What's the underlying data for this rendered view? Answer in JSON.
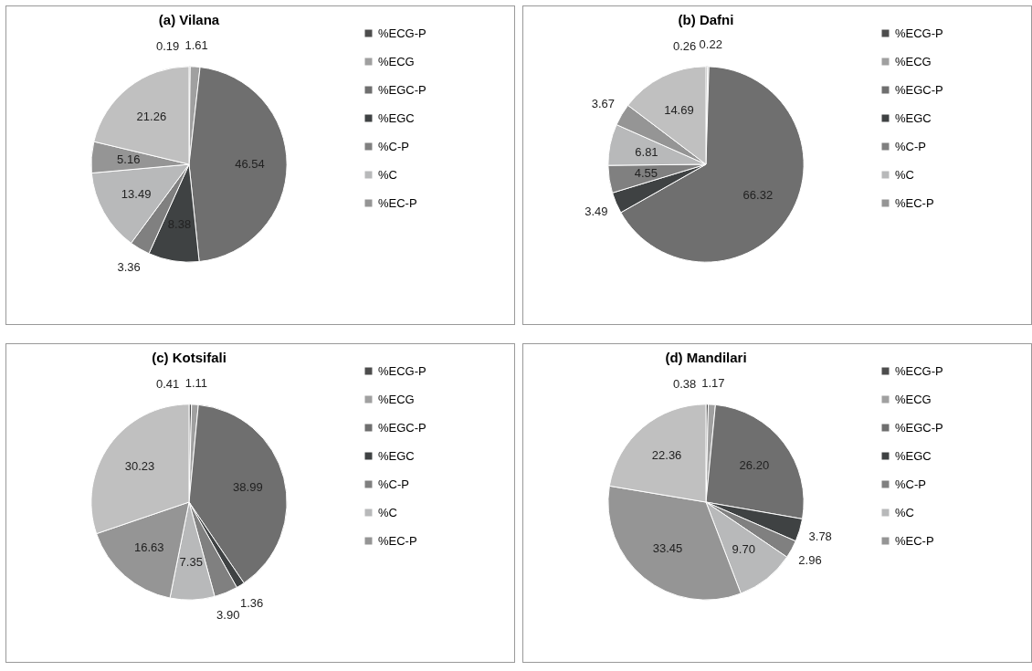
{
  "chart_data": [
    {
      "type": "pie",
      "title": "(a) Vilana",
      "categories": [
        "%ECG-P",
        "%ECG",
        "%EGC-P",
        "%EGC",
        "%C-P",
        "%C",
        "%EC-P",
        null
      ],
      "values": [
        0.19,
        1.61,
        46.54,
        8.38,
        3.36,
        13.49,
        5.16,
        21.26
      ],
      "value_labels": [
        "0.19",
        "1.61",
        "46.54",
        "8.38",
        "3.36",
        "13.49",
        "5.16",
        "21.26"
      ],
      "colors": [
        "#4d4d4d",
        "#a0a0a0",
        "#6f6f6f",
        "#3f4243",
        "#808080",
        "#b8b9ba",
        "#959595",
        "#c0c0c0"
      ],
      "legend": "right"
    },
    {
      "type": "pie",
      "title": "(b) Dafni",
      "categories": [
        "%ECG-P",
        "%ECG",
        "%EGC-P",
        "%EGC",
        "%C-P",
        "%C",
        "%EC-P",
        null
      ],
      "values": [
        0.26,
        0.22,
        66.32,
        3.49,
        4.55,
        6.81,
        3.67,
        14.69
      ],
      "value_labels": [
        "0.26",
        "0.22",
        "66.32",
        "3.49",
        "4.55",
        "6.81",
        "3.67",
        "14.69"
      ],
      "colors": [
        "#4d4d4d",
        "#a0a0a0",
        "#6f6f6f",
        "#3f4243",
        "#808080",
        "#b8b9ba",
        "#959595",
        "#c0c0c0"
      ],
      "legend": "right"
    },
    {
      "type": "pie",
      "title": "(c) Kotsifali",
      "categories": [
        "%ECG-P",
        "%ECG",
        "%EGC-P",
        "%EGC",
        "%C-P",
        "%C",
        "%EC-P",
        null
      ],
      "values": [
        0.41,
        1.11,
        38.99,
        1.36,
        3.9,
        7.35,
        16.63,
        30.23
      ],
      "value_labels": [
        "0.41",
        "1.11",
        "38.99",
        "1.36",
        "3.90",
        "7.35",
        "16.63",
        "30.23"
      ],
      "colors": [
        "#4d4d4d",
        "#a0a0a0",
        "#6f6f6f",
        "#3f4243",
        "#808080",
        "#b8b9ba",
        "#959595",
        "#c0c0c0"
      ],
      "legend": "right"
    },
    {
      "type": "pie",
      "title": "(d) Mandilari",
      "categories": [
        "%ECG-P",
        "%ECG",
        "%EGC-P",
        "%EGC",
        "%C-P",
        "%C",
        "%EC-P",
        null
      ],
      "values": [
        0.38,
        1.17,
        26.2,
        3.78,
        2.96,
        9.7,
        33.45,
        22.36
      ],
      "value_labels": [
        "0.38",
        "1.17",
        "26.20",
        "3.78",
        "2.96",
        "9.70",
        "33.45",
        "22.36"
      ],
      "colors": [
        "#4d4d4d",
        "#a0a0a0",
        "#6f6f6f",
        "#3f4243",
        "#808080",
        "#b8b9ba",
        "#959595",
        "#c0c0c0"
      ],
      "legend": "right"
    }
  ]
}
